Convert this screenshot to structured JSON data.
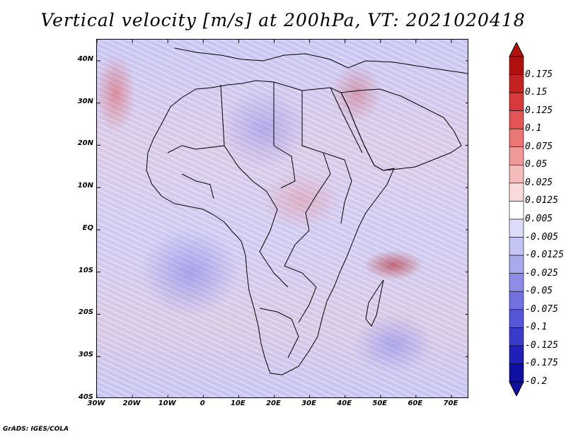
{
  "title": "Vertical velocity [m/s] at 200hPa, VT: 2021020418",
  "credit": "GrADS: IGES/COLA",
  "map": {
    "lon_range": [
      -30,
      75
    ],
    "lat_range": [
      -40,
      45
    ],
    "lat_labels": [
      "40N",
      "30N",
      "20N",
      "10N",
      "EQ",
      "10S",
      "20S",
      "30S",
      "40S"
    ],
    "lat_values": [
      40,
      30,
      20,
      10,
      0,
      -10,
      -20,
      -30,
      -40
    ],
    "lon_labels": [
      "30W",
      "20W",
      "10W",
      "0",
      "10E",
      "20E",
      "30E",
      "40E",
      "50E",
      "60E",
      "70E"
    ],
    "lon_values": [
      -30,
      -20,
      -10,
      0,
      10,
      20,
      30,
      40,
      50,
      60,
      70
    ]
  },
  "colorbar": {
    "labels": [
      "0.175",
      "0.15",
      "0.125",
      "0.1",
      "0.075",
      "0.05",
      "0.025",
      "0.0125",
      "0.005",
      "-0.005",
      "-0.0125",
      "-0.025",
      "-0.05",
      "-0.075",
      "-0.1",
      "-0.125",
      "-0.175",
      "-0.2"
    ],
    "colors": [
      "#b01010",
      "#c42222",
      "#d63a3a",
      "#e25555",
      "#ea7676",
      "#f09999",
      "#f6bbbb",
      "#fadada",
      "#ffffff",
      "#dcdcfa",
      "#c4c4f4",
      "#a9a9ee",
      "#8d8de8",
      "#7171e0",
      "#5555d6",
      "#3a3acb",
      "#2020b8",
      "#1010a0"
    ]
  }
}
